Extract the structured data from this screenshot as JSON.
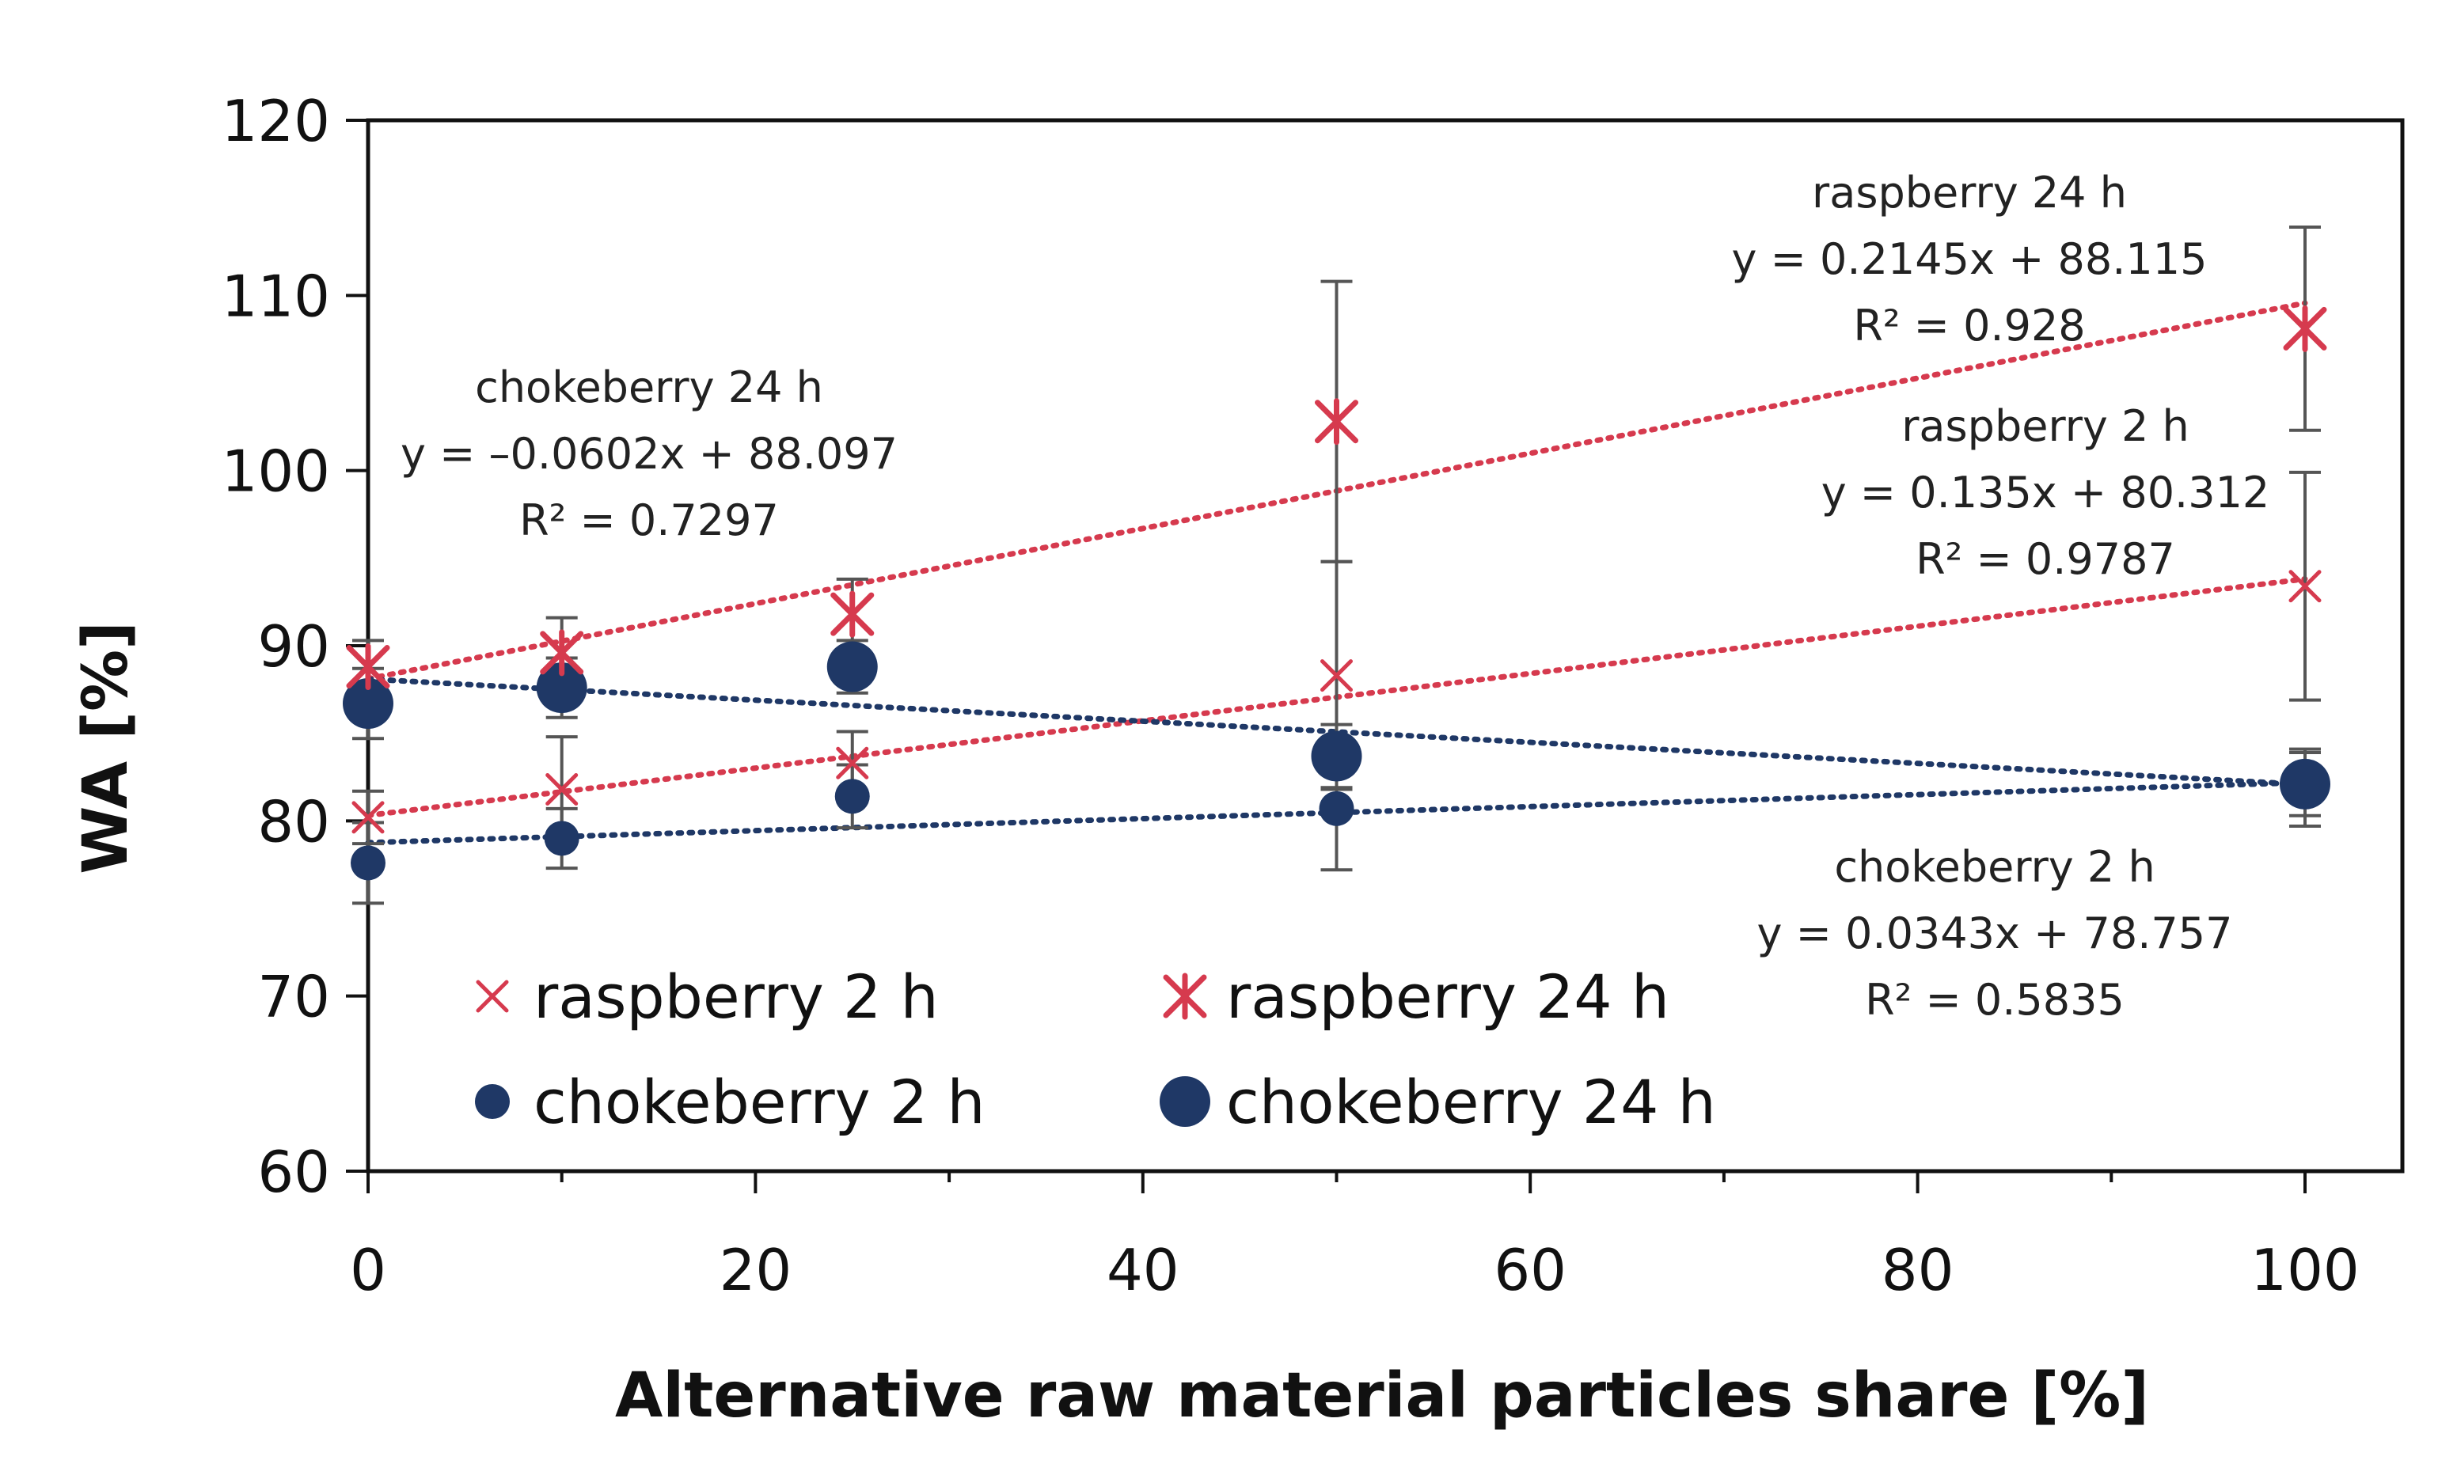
{
  "chart_data": {
    "type": "scatter",
    "title": "",
    "xlabel": "Alternative raw material particles share [%]",
    "ylabel": "WA [%]",
    "xlim": [
      0,
      105
    ],
    "ylim": [
      60,
      120
    ],
    "xticks": [
      0,
      20,
      40,
      60,
      80,
      100
    ],
    "xtick_labels": [
      "0",
      "20",
      "40",
      "60",
      "80",
      "100"
    ],
    "yticks": [
      60,
      70,
      80,
      90,
      100,
      110,
      120
    ],
    "ytick_labels": [
      "60",
      "70",
      "80",
      "90",
      "100",
      "110",
      "120"
    ],
    "grid": false,
    "legend_position": "bottom-left",
    "series": [
      {
        "key": "rasp2",
        "name": "raspberry 2 h",
        "marker": "x",
        "color": "#d63a4e",
        "x": [
          0,
          10,
          25,
          50,
          100
        ],
        "y": [
          80.2,
          81.8,
          83.3,
          88.3,
          93.4
        ],
        "err": [
          1.5,
          3.0,
          1.8,
          6.5,
          6.5
        ],
        "trend": {
          "slope": 0.135,
          "intercept": 80.312
        }
      },
      {
        "key": "rasp24",
        "name": "raspberry 24 h",
        "marker": "star",
        "color": "#d63a4e",
        "x": [
          0,
          10,
          25,
          50,
          100
        ],
        "y": [
          88.8,
          89.6,
          91.8,
          102.8,
          108.1
        ],
        "err": [
          1.5,
          2.0,
          2.0,
          8.0,
          5.8
        ],
        "trend": {
          "slope": 0.2145,
          "intercept": 88.115
        }
      },
      {
        "key": "choke2",
        "name": "chokeberry 2 h",
        "marker": "dot",
        "color": "#1f3866",
        "x": [
          0,
          10,
          25,
          50,
          100
        ],
        "y": [
          77.6,
          79.0,
          81.4,
          80.7,
          81.9
        ],
        "err": [
          2.3,
          1.7,
          1.8,
          3.5,
          2.2
        ],
        "trend": {
          "slope": 0.0343,
          "intercept": 78.757
        }
      },
      {
        "key": "choke24",
        "name": "chokeberry 24 h",
        "marker": "bigdot",
        "color": "#1f3866",
        "x": [
          0,
          10,
          25,
          50,
          100
        ],
        "y": [
          86.7,
          87.6,
          88.8,
          83.7,
          82.1
        ],
        "err": [
          2.0,
          1.7,
          1.5,
          1.8,
          1.8
        ],
        "trend": {
          "slope": -0.0602,
          "intercept": 88.097
        }
      }
    ],
    "annotations": [
      {
        "key": "rasp24",
        "lines": [
          "raspberry 24 h",
          "y = 0.2145x + 88.115",
          "R² = 0.928"
        ]
      },
      {
        "key": "choke24",
        "lines": [
          "chokeberry 24 h",
          "y = –0.0602x + 88.097",
          "R² = 0.7297"
        ]
      },
      {
        "key": "rasp2",
        "lines": [
          "raspberry 2 h",
          "y = 0.135x + 80.312",
          "R² = 0.9787"
        ]
      },
      {
        "key": "choke2",
        "lines": [
          "chokeberry 2 h",
          "y = 0.0343x + 78.757",
          "R² = 0.5835"
        ]
      }
    ]
  }
}
